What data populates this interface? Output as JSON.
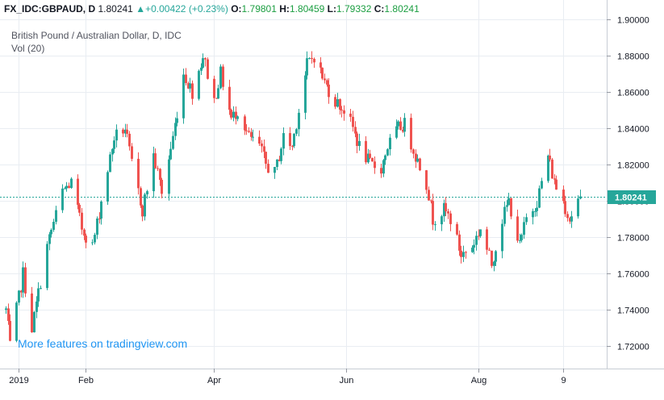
{
  "header": {
    "symbol": "FX_IDC:GBPAUD, D",
    "last": "1.80241",
    "change_arrow": "▲",
    "change": "+0.00422 (+0.23%)",
    "o_label": "O:",
    "o_value": "1.79801",
    "h_label": "H:",
    "h_value": "1.80459",
    "l_label": "L:",
    "l_value": "1.79332",
    "c_label": "C:",
    "c_value": "1.80241"
  },
  "legend": {
    "title": "British Pound / Australian Dollar, D, IDC",
    "volume": "Vol (20)"
  },
  "promo": "More features on tradingview.com",
  "price_tag": "1.80241",
  "colors": {
    "up": "#26a69a",
    "down": "#ef5350",
    "grid": "#e9edf2",
    "last_line": "#26a69a",
    "promo": "#2196f3"
  },
  "chart_data": {
    "type": "candlestick",
    "y_ticks": [
      "1.90000",
      "1.88000",
      "1.86000",
      "1.84000",
      "1.82000",
      "1.80000",
      "1.78000",
      "1.76000",
      "1.74000",
      "1.72000"
    ],
    "x_ticks": [
      "2019",
      "Feb",
      "Apr",
      "Jun",
      "Aug",
      "9"
    ],
    "ylim": [
      1.7077,
      1.9105
    ],
    "last_price": 1.80241,
    "waypoints": [
      [
        "2018-12-26",
        1.74
      ],
      [
        "2018-12-28",
        1.72
      ],
      [
        "2019-01-03",
        1.76
      ],
      [
        "2019-01-07",
        1.73
      ],
      [
        "2019-01-14",
        1.775
      ],
      [
        "2019-01-21",
        1.805
      ],
      [
        "2019-01-25",
        1.81
      ],
      [
        "2019-01-30",
        1.785
      ],
      [
        "2019-02-04",
        1.775
      ],
      [
        "2019-02-08",
        1.8
      ],
      [
        "2019-02-14",
        1.835
      ],
      [
        "2019-02-19",
        1.84
      ],
      [
        "2019-02-22",
        1.82
      ],
      [
        "2019-02-27",
        1.795
      ],
      [
        "2019-03-04",
        1.825
      ],
      [
        "2019-03-08",
        1.805
      ],
      [
        "2019-03-13",
        1.835
      ],
      [
        "2019-03-18",
        1.87
      ],
      [
        "2019-03-22",
        1.86
      ],
      [
        "2019-03-27",
        1.88
      ],
      [
        "2019-04-01",
        1.855
      ],
      [
        "2019-04-04",
        1.87
      ],
      [
        "2019-04-09",
        1.845
      ],
      [
        "2019-04-12",
        1.85
      ],
      [
        "2019-04-17",
        1.835
      ],
      [
        "2019-04-22",
        1.83
      ],
      [
        "2019-04-25",
        1.82
      ],
      [
        "2019-04-29",
        1.815
      ],
      [
        "2019-05-03",
        1.835
      ],
      [
        "2019-05-07",
        1.83
      ],
      [
        "2019-05-10",
        1.85
      ],
      [
        "2019-05-14",
        1.875
      ],
      [
        "2019-05-17",
        1.88
      ],
      [
        "2019-05-22",
        1.865
      ],
      [
        "2019-05-27",
        1.855
      ],
      [
        "2019-05-31",
        1.85
      ],
      [
        "2019-06-04",
        1.84
      ],
      [
        "2019-06-07",
        1.83
      ],
      [
        "2019-06-12",
        1.82
      ],
      [
        "2019-06-17",
        1.818
      ],
      [
        "2019-06-20",
        1.83
      ],
      [
        "2019-06-25",
        1.84
      ],
      [
        "2019-06-28",
        1.842
      ],
      [
        "2019-07-03",
        1.825
      ],
      [
        "2019-07-08",
        1.81
      ],
      [
        "2019-07-11",
        1.79
      ],
      [
        "2019-07-16",
        1.795
      ],
      [
        "2019-07-19",
        1.79
      ],
      [
        "2019-07-24",
        1.77
      ],
      [
        "2019-07-29",
        1.775
      ],
      [
        "2019-08-02",
        1.785
      ],
      [
        "2019-08-07",
        1.765
      ],
      [
        "2019-08-12",
        1.79
      ],
      [
        "2019-08-15",
        1.8
      ],
      [
        "2019-08-20",
        1.775
      ],
      [
        "2019-08-23",
        1.79
      ],
      [
        "2019-08-28",
        1.8
      ],
      [
        "2019-09-02",
        1.825
      ],
      [
        "2019-09-05",
        1.81
      ],
      [
        "2019-09-09",
        1.8
      ],
      [
        "2019-09-12",
        1.79
      ],
      [
        "2019-09-17",
        1.80241
      ]
    ]
  }
}
